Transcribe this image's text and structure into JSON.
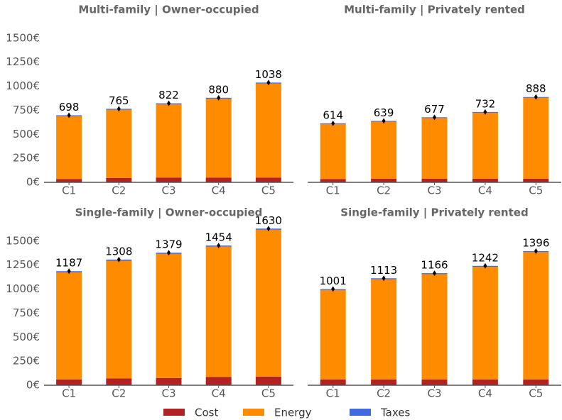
{
  "chart_data": [
    {
      "type": "stacked-bar",
      "title": "Multi-family | Owner-occupied",
      "categories": [
        "C1",
        "C2",
        "C3",
        "C4",
        "C5"
      ],
      "series": [
        {
          "name": "Cost",
          "color": "#b22222",
          "values": [
            35,
            45,
            50,
            50,
            50
          ]
        },
        {
          "name": "Energy",
          "color": "#ff8c00",
          "values": [
            653,
            710,
            762,
            820,
            978
          ]
        },
        {
          "name": "Taxes",
          "color": "#4169e1",
          "values": [
            10,
            10,
            10,
            10,
            10
          ]
        }
      ],
      "totals": [
        698,
        765,
        822,
        880,
        1038
      ],
      "ylim": [
        0,
        1750
      ],
      "yticks": [
        {
          "value": 0,
          "label": "0€"
        },
        {
          "value": 250,
          "label": "250€"
        },
        {
          "value": 500,
          "label": "500€"
        },
        {
          "value": 750,
          "label": "750€"
        },
        {
          "value": 1000,
          "label": "1000€"
        },
        {
          "value": 1250,
          "label": "1250€"
        },
        {
          "value": 1500,
          "label": "1500€"
        }
      ]
    },
    {
      "type": "stacked-bar",
      "title": "Multi-family | Privately rented",
      "categories": [
        "C1",
        "C2",
        "C3",
        "C4",
        "C5"
      ],
      "series": [
        {
          "name": "Cost",
          "color": "#b22222",
          "values": [
            35,
            38,
            38,
            38,
            38
          ]
        },
        {
          "name": "Energy",
          "color": "#ff8c00",
          "values": [
            571,
            593,
            631,
            686,
            842
          ]
        },
        {
          "name": "Taxes",
          "color": "#4169e1",
          "values": [
            8,
            8,
            8,
            8,
            8
          ]
        }
      ],
      "totals": [
        614,
        639,
        677,
        732,
        888
      ],
      "ylim": [
        0,
        1750
      ]
    },
    {
      "type": "stacked-bar",
      "title": "Single-family | Owner-occupied",
      "categories": [
        "C1",
        "C2",
        "C3",
        "C4",
        "C5"
      ],
      "series": [
        {
          "name": "Cost",
          "color": "#b22222",
          "values": [
            60,
            70,
            75,
            85,
            90
          ]
        },
        {
          "name": "Energy",
          "color": "#ff8c00",
          "values": [
            1115,
            1226,
            1292,
            1357,
            1528
          ]
        },
        {
          "name": "Taxes",
          "color": "#4169e1",
          "values": [
            12,
            12,
            12,
            12,
            12
          ]
        }
      ],
      "totals": [
        1187,
        1308,
        1379,
        1454,
        1630
      ],
      "ylim": [
        0,
        1750
      ],
      "yticks": [
        {
          "value": 0,
          "label": "0€"
        },
        {
          "value": 250,
          "label": "250€"
        },
        {
          "value": 500,
          "label": "500€"
        },
        {
          "value": 750,
          "label": "750€"
        },
        {
          "value": 1000,
          "label": "1000€"
        },
        {
          "value": 1250,
          "label": "1250€"
        },
        {
          "value": 1500,
          "label": "1500€"
        }
      ]
    },
    {
      "type": "stacked-bar",
      "title": "Single-family | Privately rented",
      "categories": [
        "C1",
        "C2",
        "C3",
        "C4",
        "C5"
      ],
      "series": [
        {
          "name": "Cost",
          "color": "#b22222",
          "values": [
            60,
            60,
            60,
            60,
            60
          ]
        },
        {
          "name": "Energy",
          "color": "#ff8c00",
          "values": [
            931,
            1043,
            1096,
            1172,
            1326
          ]
        },
        {
          "name": "Taxes",
          "color": "#4169e1",
          "values": [
            10,
            10,
            10,
            10,
            10
          ]
        }
      ],
      "totals": [
        1001,
        1113,
        1166,
        1242,
        1396
      ],
      "ylim": [
        0,
        1750
      ]
    }
  ]
}
